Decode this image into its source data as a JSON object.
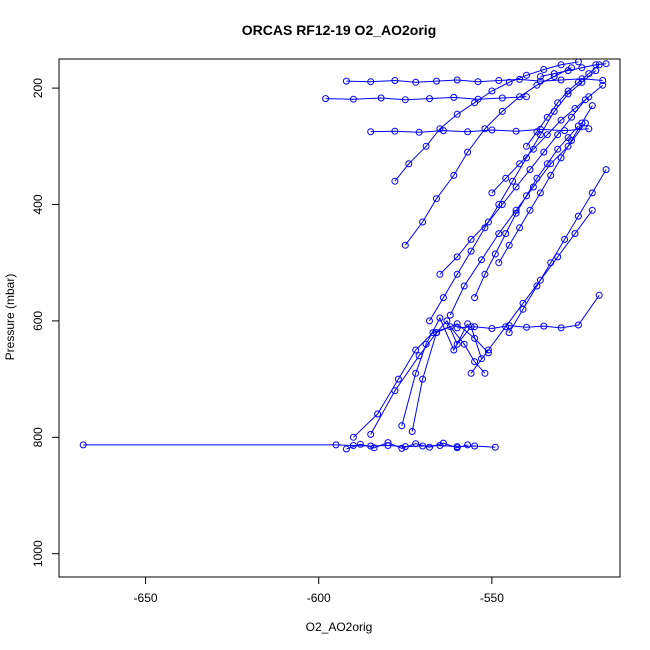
{
  "chart_data": {
    "type": "line",
    "title": "ORCAS RF12-19 O2_AO2orig",
    "xlabel": "O2_AO2orig",
    "ylabel": "Pressure (mbar)",
    "xlim": [
      -675,
      -513
    ],
    "ylim": [
      1040,
      150
    ],
    "y_reversed": true,
    "grid": false,
    "legend": "none",
    "marker": "open-circle",
    "series_color": "#0000ff",
    "x_ticks": [
      -650,
      -600,
      -550
    ],
    "y_ticks": [
      200,
      400,
      600,
      800,
      1000
    ],
    "series": [
      {
        "segments": [
          {
            "x": [
              -668,
              -595,
              -590,
              -585,
              -580,
              -575,
              -570,
              -565,
              -560,
              -555,
              -549
            ],
            "y": [
              813,
              813,
              814,
              815,
              814,
              816,
              815,
              814,
              816,
              815,
              817
            ]
          },
          {
            "x": [
              -592,
              -588,
              -584,
              -580,
              -576,
              -572,
              -568,
              -564,
              -560,
              -557
            ],
            "y": [
              820,
              812,
              818,
              809,
              819,
              811,
              817,
              810,
              818,
              813
            ]
          },
          {
            "x": [
              -590,
              -583,
              -577,
              -572,
              -567,
              -562,
              -558,
              -555,
              -552
            ],
            "y": [
              800,
              760,
              700,
              650,
              620,
              610,
              640,
              670,
              690
            ]
          },
          {
            "x": [
              -585,
              -578,
              -571,
              -566,
              -560,
              -555,
              -551
            ],
            "y": [
              795,
              720,
              660,
              620,
              605,
              630,
              655
            ]
          },
          {
            "x": [
              -573,
              -570,
              -566,
              -563,
              -560,
              -556,
              -553
            ],
            "y": [
              790,
              700,
              620,
              600,
              640,
              610,
              665
            ]
          },
          {
            "x": [
              -576,
              -572,
              -569,
              -565,
              -561,
              -557
            ],
            "y": [
              780,
              690,
              640,
              595,
              650,
              605
            ]
          },
          {
            "x": [
              -568,
              -564,
              -560,
              -556,
              -552,
              -548,
              -544,
              -540,
              -536,
              -532,
              -528,
              -524,
              -520
            ],
            "y": [
              600,
              560,
              520,
              480,
              440,
              400,
              360,
              320,
              280,
              240,
              210,
              190,
              170
            ]
          },
          {
            "x": [
              -562,
              -558,
              -553,
              -548,
              -543,
              -538,
              -533,
              -528,
              -523
            ],
            "y": [
              590,
              540,
              495,
              450,
              410,
              370,
              330,
              300,
              260
            ]
          },
          {
            "x": [
              -575,
              -570,
              -566,
              -561,
              -557,
              -552,
              -547,
              -542,
              -537,
              -532,
              -527
            ],
            "y": [
              470,
              430,
              390,
              350,
              310,
              270,
              240,
              215,
              195,
              180,
              165
            ]
          },
          {
            "x": [
              -578,
              -574,
              -569,
              -565,
              -560,
              -555,
              -550,
              -545,
              -540,
              -535,
              -530,
              -525
            ],
            "y": [
              360,
              330,
              300,
              270,
              245,
              225,
              205,
              190,
              178,
              168,
              160,
              155
            ]
          },
          {
            "x": [
              -592,
              -585,
              -578,
              -572,
              -566,
              -560,
              -554,
              -548,
              -542,
              -536,
              -530,
              -524,
              -518
            ],
            "y": [
              188,
              189,
              187,
              190,
              188,
              186,
              189,
              187,
              185,
              188,
              186,
              184,
              187
            ]
          },
          {
            "x": [
              -598,
              -590,
              -582,
              -575,
              -568,
              -561,
              -554,
              -547,
              -540
            ],
            "y": [
              218,
              219,
              217,
              220,
              218,
              216,
              219,
              217,
              215
            ]
          },
          {
            "x": [
              -585,
              -578,
              -571,
              -564,
              -557,
              -550,
              -543,
              -536,
              -529,
              -522
            ],
            "y": [
              275,
              274,
              276,
              273,
              275,
              272,
              274,
              271,
              273,
              270
            ]
          },
          {
            "x": [
              -560,
              -555,
              -550,
              -545,
              -540,
              -535,
              -530,
              -525,
              -519
            ],
            "y": [
              612,
              610,
              613,
              608,
              611,
              609,
              612,
              607,
              556
            ]
          },
          {
            "x": [
              -545,
              -541,
              -537,
              -533,
              -529,
              -525,
              -521,
              -517
            ],
            "y": [
              620,
              580,
              540,
              500,
              460,
              420,
              380,
              340
            ]
          },
          {
            "x": [
              -556,
              -551,
              -546,
              -541,
              -536,
              -531,
              -526,
              -521
            ],
            "y": [
              690,
              650,
              610,
              570,
              530,
              490,
              450,
              410
            ]
          },
          {
            "x": [
              -555,
              -552,
              -549,
              -546,
              -543,
              -540,
              -537,
              -534,
              -531,
              -528,
              -525
            ],
            "y": [
              560,
              520,
              485,
              450,
              415,
              385,
              355,
              330,
              305,
              285,
              265
            ]
          },
          {
            "x": [
              -548,
              -545,
              -542,
              -539,
              -536,
              -533,
              -530,
              -527,
              -524,
              -521
            ],
            "y": [
              500,
              470,
              440,
              410,
              380,
              350,
              320,
              290,
              260,
              230
            ]
          },
          {
            "x": [
              -565,
              -560,
              -556,
              -551,
              -547,
              -543,
              -539,
              -535,
              -531,
              -527,
              -523
            ],
            "y": [
              520,
              490,
              460,
              430,
              400,
              370,
              340,
              310,
              280,
              250,
              220
            ]
          },
          {
            "x": [
              -540,
              -537,
              -534,
              -531,
              -528,
              -525,
              -522,
              -519
            ],
            "y": [
              300,
              275,
              250,
              225,
              205,
              190,
              175,
              160
            ]
          },
          {
            "x": [
              -550,
              -546,
              -542,
              -538,
              -534,
              -530,
              -526,
              -522,
              -518
            ],
            "y": [
              380,
              355,
              330,
              305,
              280,
              255,
              235,
              215,
              195
            ]
          },
          {
            "x": [
              -536,
              -532,
              -528,
              -524,
              -520,
              -517
            ],
            "y": [
              180,
              175,
              170,
              165,
              160,
              158
            ]
          }
        ]
      }
    ]
  }
}
